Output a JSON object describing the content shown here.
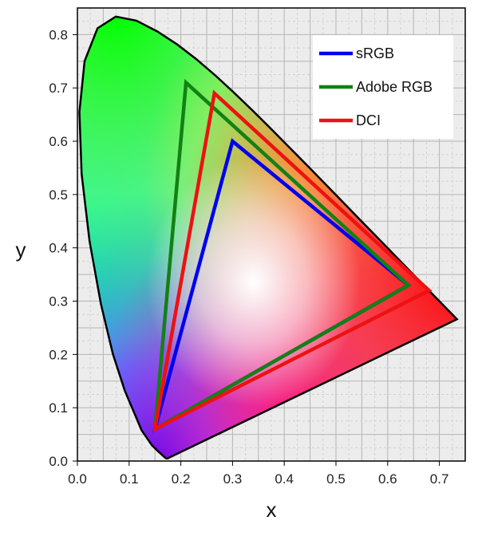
{
  "chart_data": {
    "type": "line",
    "title": "",
    "xlabel": "x",
    "ylabel": "y",
    "xlim": [
      0.0,
      0.75
    ],
    "ylim": [
      0.0,
      0.85
    ],
    "xticks": [
      "0.0",
      "0.1",
      "0.2",
      "0.3",
      "0.4",
      "0.5",
      "0.6",
      "0.7"
    ],
    "yticks": [
      "0.0",
      "0.1",
      "0.2",
      "0.3",
      "0.4",
      "0.5",
      "0.6",
      "0.7",
      "0.8"
    ],
    "grid": true,
    "legend_position": "top-right",
    "spectral_locus": {
      "x": [
        0.1741,
        0.1738,
        0.1733,
        0.1726,
        0.1714,
        0.1689,
        0.1644,
        0.1566,
        0.144,
        0.1241,
        0.0913,
        0.0687,
        0.0454,
        0.0235,
        0.0082,
        0.0039,
        0.0139,
        0.0389,
        0.0743,
        0.1142,
        0.1547,
        0.1929,
        0.2296,
        0.2658,
        0.3016,
        0.3373,
        0.3731,
        0.4087,
        0.4441,
        0.4788,
        0.5125,
        0.5448,
        0.5752,
        0.6029,
        0.627,
        0.6482,
        0.6658,
        0.6801,
        0.6915,
        0.7006,
        0.7079,
        0.714,
        0.719,
        0.723,
        0.726,
        0.7283,
        0.73,
        0.7311,
        0.732,
        0.7327,
        0.7334,
        0.734
      ],
      "y": [
        0.005,
        0.0049,
        0.0048,
        0.0048,
        0.0051,
        0.0069,
        0.0109,
        0.0177,
        0.0297,
        0.0578,
        0.1327,
        0.2007,
        0.295,
        0.4127,
        0.5384,
        0.6548,
        0.7502,
        0.812,
        0.8338,
        0.8262,
        0.8059,
        0.7816,
        0.7543,
        0.7243,
        0.6923,
        0.6589,
        0.6245,
        0.5896,
        0.5547,
        0.5202,
        0.4866,
        0.4544,
        0.4242,
        0.3965,
        0.3725,
        0.3514,
        0.334,
        0.3197,
        0.3083,
        0.2993,
        0.292,
        0.2859,
        0.2809,
        0.277,
        0.274,
        0.2717,
        0.27,
        0.2689,
        0.268,
        0.2673,
        0.2666,
        0.266
      ]
    },
    "series": [
      {
        "name": "sRGB",
        "color": "#0000ee",
        "x": [
          0.64,
          0.3,
          0.15,
          0.64
        ],
        "y": [
          0.33,
          0.6,
          0.06,
          0.33
        ]
      },
      {
        "name": "Adobe RGB",
        "color": "#148014",
        "x": [
          0.64,
          0.21,
          0.15,
          0.64
        ],
        "y": [
          0.33,
          0.71,
          0.06,
          0.33
        ]
      },
      {
        "name": "DCI",
        "color": "#ee1111",
        "x": [
          0.68,
          0.265,
          0.15,
          0.68
        ],
        "y": [
          0.32,
          0.69,
          0.06,
          0.32
        ]
      }
    ]
  }
}
